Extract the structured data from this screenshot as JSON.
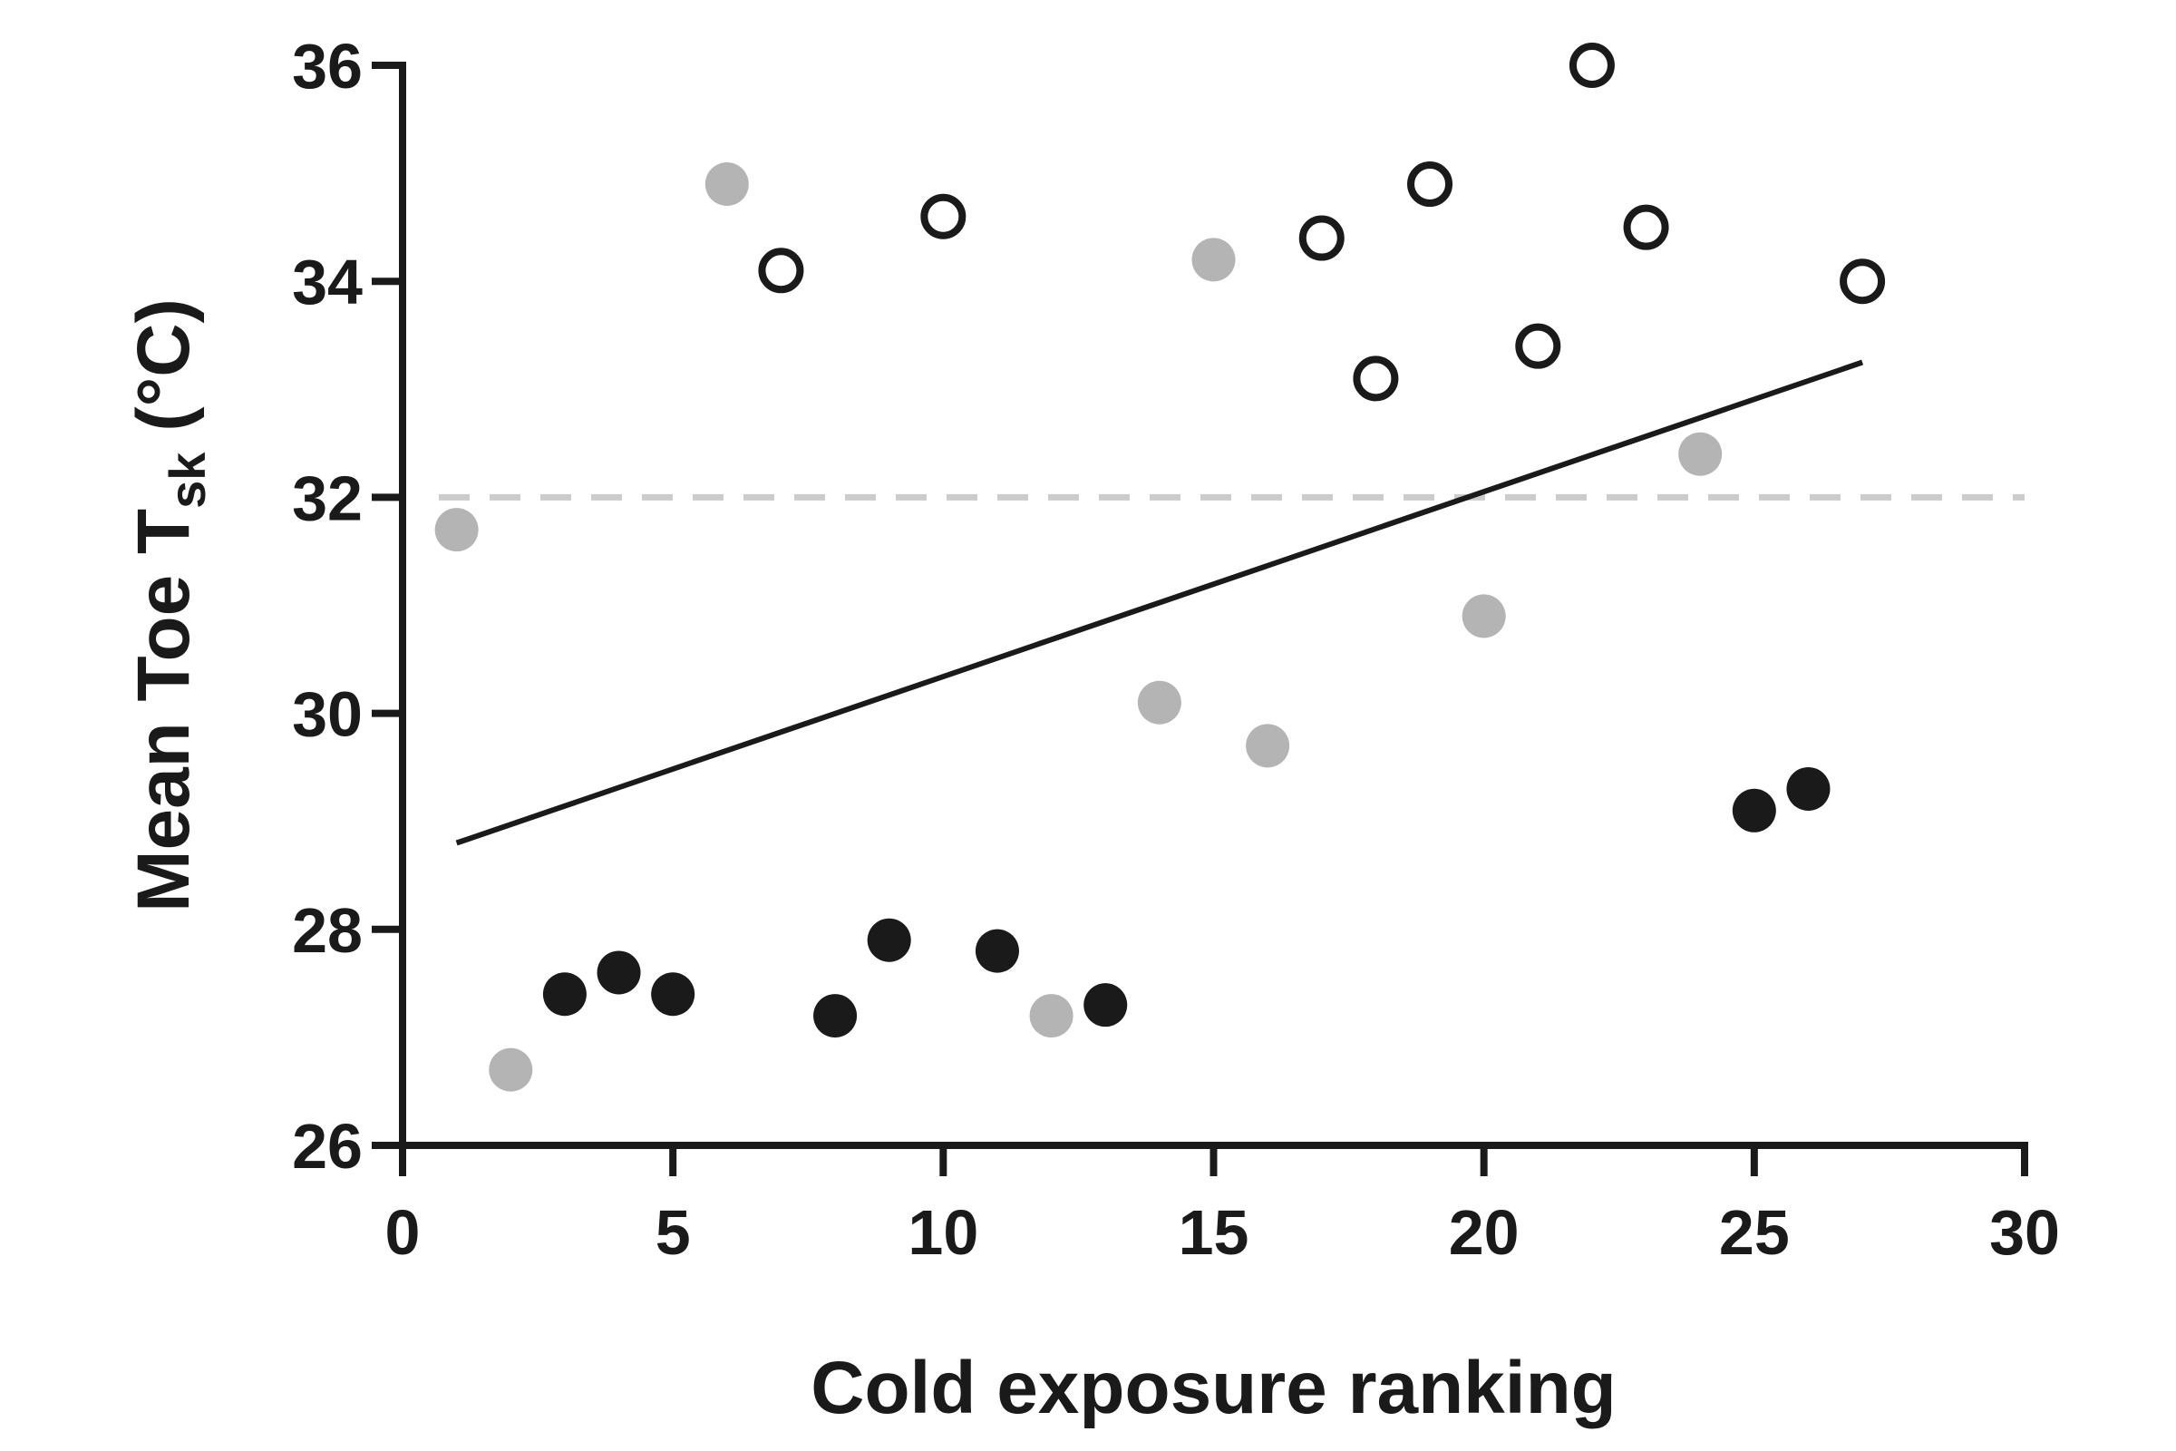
{
  "chart_data": {
    "type": "scatter",
    "title": "",
    "xlabel": "Cold exposure ranking",
    "ylabel": {
      "main": "Mean Toe T",
      "sub": "sk",
      "unit": " (°C)"
    },
    "xlim": [
      0,
      30
    ],
    "ylim": [
      26,
      36
    ],
    "xticks": [
      0,
      5,
      10,
      15,
      20,
      25,
      30
    ],
    "yticks": [
      26,
      28,
      30,
      32,
      34,
      36
    ],
    "grid": false,
    "colors": {
      "axis": "#1a1a1a",
      "filled": "#1a1a1a",
      "gray": "#b4b4b4",
      "reference": "#cccccc"
    },
    "series": [
      {
        "style": "open",
        "points": [
          [
            7,
            34.1
          ],
          [
            10,
            34.6
          ],
          [
            17,
            34.4
          ],
          [
            18,
            33.1
          ],
          [
            19,
            34.9
          ],
          [
            21,
            33.4
          ],
          [
            22,
            36.0
          ],
          [
            23,
            34.5
          ],
          [
            27,
            34.0
          ]
        ]
      },
      {
        "style": "gray",
        "points": [
          [
            1,
            31.7
          ],
          [
            2,
            26.7
          ],
          [
            6,
            34.9
          ],
          [
            12,
            27.2
          ],
          [
            14,
            30.1
          ],
          [
            15,
            34.2
          ],
          [
            16,
            29.7
          ],
          [
            20,
            30.9
          ],
          [
            24,
            32.4
          ]
        ]
      },
      {
        "style": "filled",
        "points": [
          [
            3,
            27.4
          ],
          [
            4,
            27.6
          ],
          [
            5,
            27.4
          ],
          [
            8,
            27.2
          ],
          [
            9,
            27.9
          ],
          [
            11,
            27.8
          ],
          [
            13,
            27.3
          ],
          [
            25,
            29.1
          ],
          [
            26,
            29.3
          ]
        ]
      }
    ],
    "trend_line": {
      "x": [
        1,
        27
      ],
      "y": [
        28.8,
        33.25
      ]
    },
    "reference_line": {
      "y": 32,
      "style": "dashed"
    }
  }
}
